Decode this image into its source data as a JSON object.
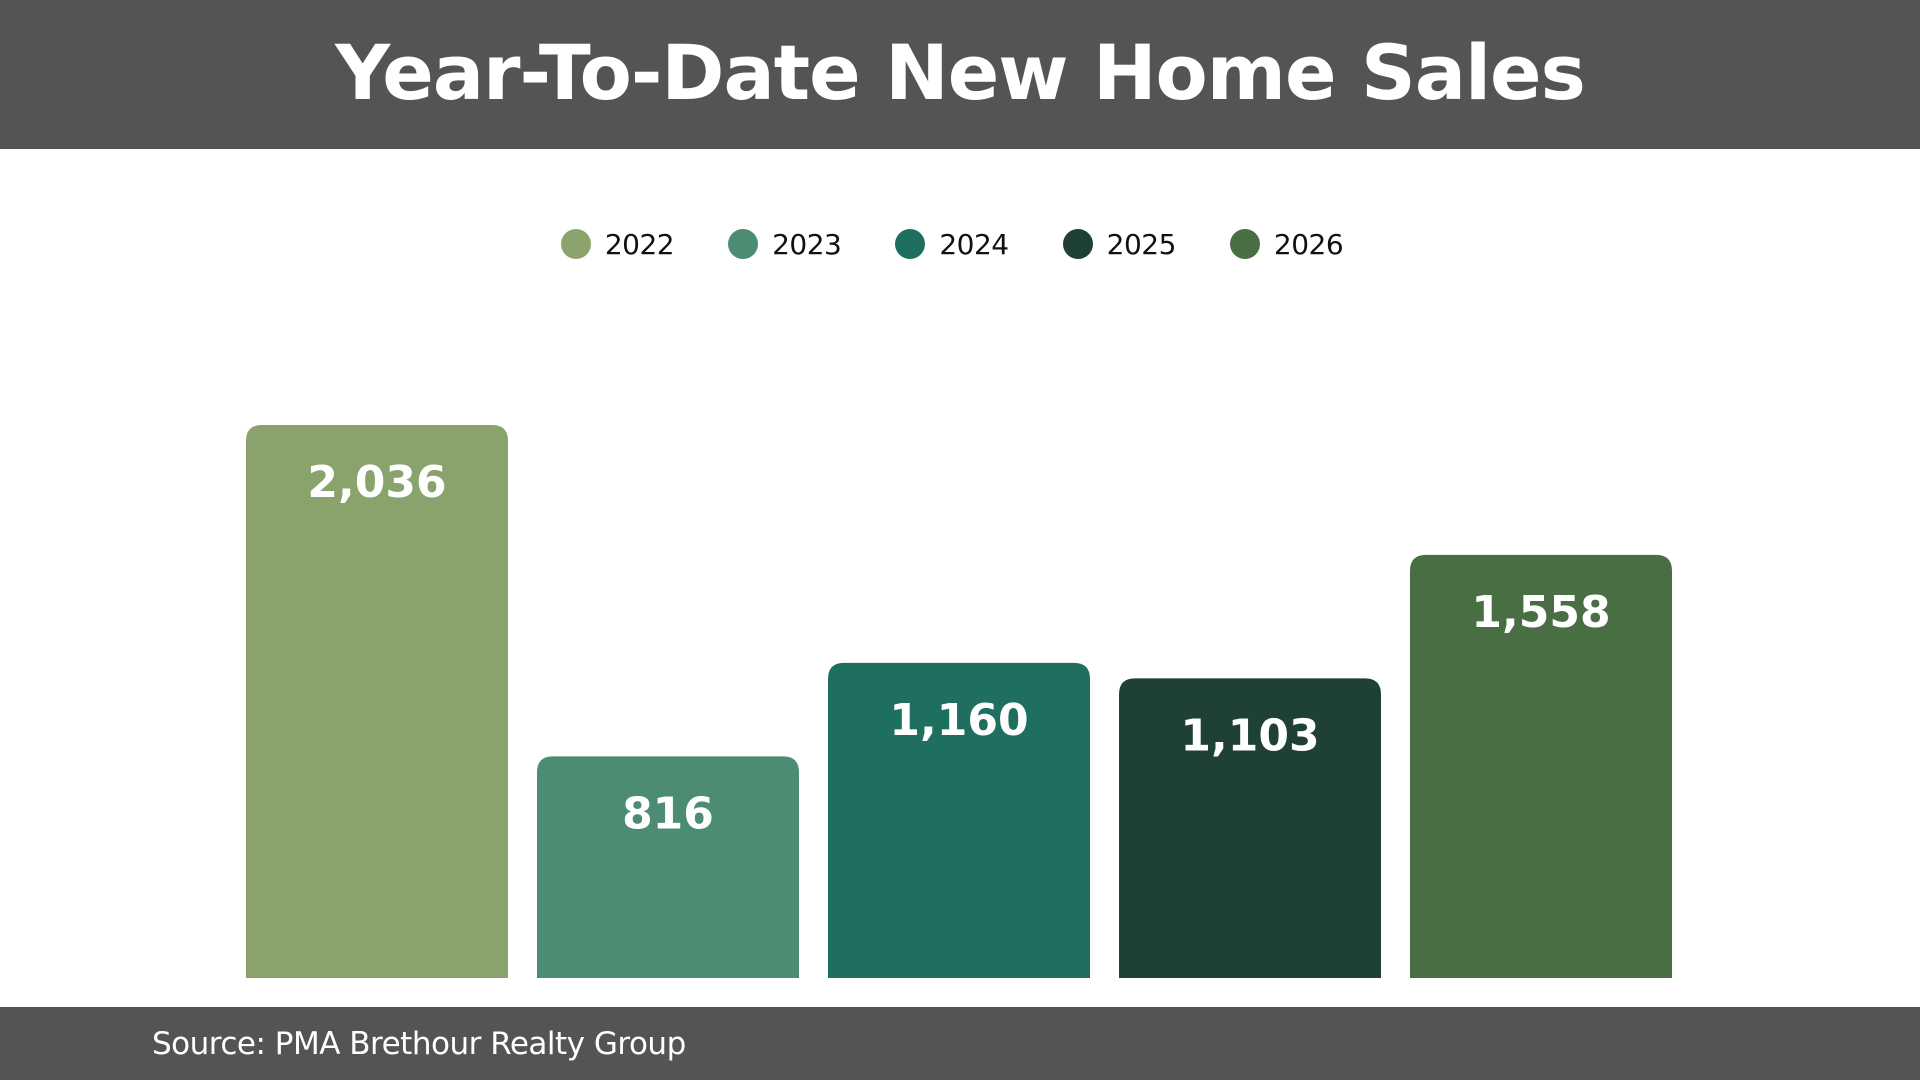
{
  "header": {
    "title": "Year-To-Date New Home Sales"
  },
  "footer": {
    "source": "Source: PMA Brethour Realty Group"
  },
  "chart_data": {
    "type": "bar",
    "title": "Year-To-Date New Home Sales",
    "xlabel": "",
    "ylabel": "",
    "ylim": [
      0,
      2036
    ],
    "grid": false,
    "legend_position": "top-center",
    "categories": [
      "2022",
      "2023",
      "2024",
      "2025",
      "2026"
    ],
    "values": [
      2036,
      816,
      1160,
      1103,
      1558
    ],
    "value_labels": [
      "2,036",
      "816",
      "1,160",
      "1,103",
      "1,558"
    ],
    "colors": [
      "#8aa26b",
      "#4b8c73",
      "#1f6f60",
      "#1f4037",
      "#4a6e43"
    ],
    "legend": [
      {
        "label": "2022",
        "color": "#8aa26b"
      },
      {
        "label": "2023",
        "color": "#4b8c73"
      },
      {
        "label": "2024",
        "color": "#1f6f60"
      },
      {
        "label": "2025",
        "color": "#1f4037"
      },
      {
        "label": "2026",
        "color": "#4a6e43"
      }
    ]
  }
}
